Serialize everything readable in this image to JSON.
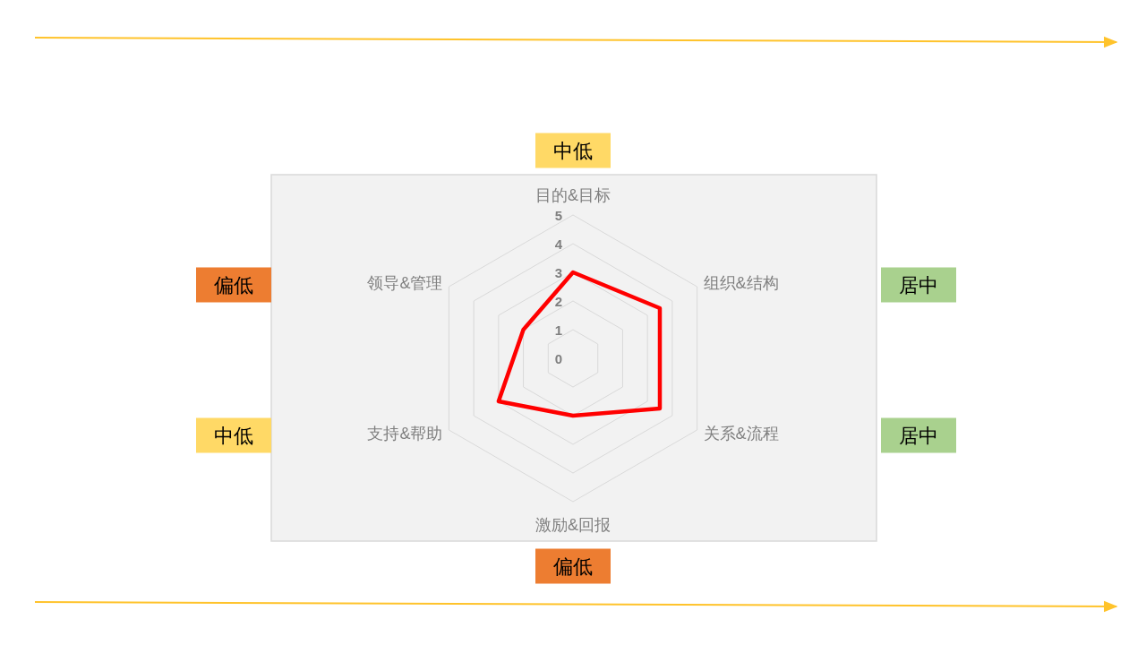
{
  "chart_data": {
    "type": "radar",
    "categories": [
      "目的&目标",
      "组织&结构",
      "关系&流程",
      "激励&回报",
      "支持&帮助",
      "领导&管理"
    ],
    "series": [
      {
        "color": "#ff0000",
        "values": [
          3,
          3.5,
          3.5,
          2,
          3,
          2
        ]
      }
    ],
    "ylim": [
      0,
      5
    ],
    "yticks": [
      0,
      1,
      2,
      3,
      4,
      5
    ],
    "grid": true,
    "annotations": [
      "中低",
      "居中",
      "居中",
      "偏低",
      "中低",
      "偏低"
    ]
  }
}
